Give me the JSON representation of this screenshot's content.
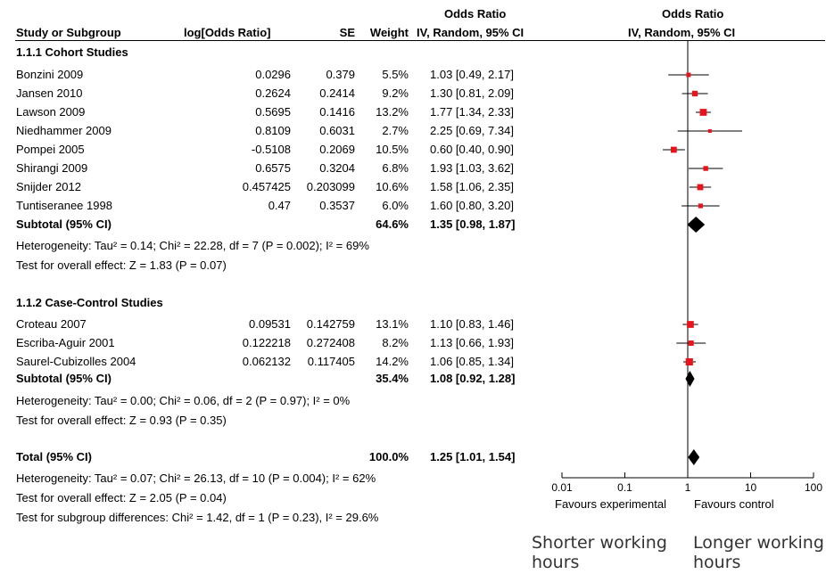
{
  "header": {
    "or_top": "Odds Ratio",
    "study": "Study or Subgroup",
    "logor": "log[Odds Ratio]",
    "se": "SE",
    "weight": "Weight",
    "or_method": "IV, Random, 95% CI",
    "plot_top": "Odds Ratio",
    "plot_method": "IV, Random, 95% CI"
  },
  "groups": [
    {
      "title": "1.1.1 Cohort Studies",
      "studies": [
        {
          "name": "Bonzini 2009",
          "logor": "0.0296",
          "se": "0.379",
          "weight": "5.5%",
          "or_ci": "1.03 [0.49, 2.17]"
        },
        {
          "name": "Jansen 2010",
          "logor": "0.2624",
          "se": "0.2414",
          "weight": "9.2%",
          "or_ci": "1.30 [0.81, 2.09]"
        },
        {
          "name": "Lawson 2009",
          "logor": "0.5695",
          "se": "0.1416",
          "weight": "13.2%",
          "or_ci": "1.77 [1.34, 2.33]"
        },
        {
          "name": "Niedhammer 2009",
          "logor": "0.8109",
          "se": "0.6031",
          "weight": "2.7%",
          "or_ci": "2.25 [0.69, 7.34]"
        },
        {
          "name": "Pompei 2005",
          "logor": "-0.5108",
          "se": "0.2069",
          "weight": "10.5%",
          "or_ci": "0.60 [0.40, 0.90]"
        },
        {
          "name": "Shirangi 2009",
          "logor": "0.6575",
          "se": "0.3204",
          "weight": "6.8%",
          "or_ci": "1.93 [1.03, 3.62]"
        },
        {
          "name": "Snijder 2012",
          "logor": "0.457425",
          "se": "0.203099",
          "weight": "10.6%",
          "or_ci": "1.58 [1.06, 2.35]"
        },
        {
          "name": "Tuntiseranee 1998",
          "logor": "0.47",
          "se": "0.3537",
          "weight": "6.0%",
          "or_ci": "1.60 [0.80, 3.20]"
        }
      ],
      "subtotal": {
        "label": "Subtotal (95% CI)",
        "weight": "64.6%",
        "or_ci": "1.35 [0.98, 1.87]"
      },
      "heterogeneity": "Heterogeneity: Tau² = 0.14; Chi² = 22.28, df = 7 (P = 0.002); I² = 69%",
      "overall": "Test for overall effect: Z = 1.83 (P = 0.07)"
    },
    {
      "title": "1.1.2 Case-Control Studies",
      "studies": [
        {
          "name": "Croteau 2007",
          "logor": "0.09531",
          "se": "0.142759",
          "weight": "13.1%",
          "or_ci": "1.10 [0.83, 1.46]"
        },
        {
          "name": "Escriba-Aguir 2001",
          "logor": "0.122218",
          "se": "0.272408",
          "weight": "8.2%",
          "or_ci": "1.13 [0.66, 1.93]"
        },
        {
          "name": "Saurel-Cubizolles 2004",
          "logor": "0.062132",
          "se": "0.117405",
          "weight": "14.2%",
          "or_ci": "1.06 [0.85, 1.34]"
        }
      ],
      "subtotal": {
        "label": "Subtotal (95% CI)",
        "weight": "35.4%",
        "or_ci": "1.08 [0.92, 1.28]"
      },
      "heterogeneity": "Heterogeneity: Tau² = 0.00; Chi² = 0.06, df = 2 (P = 0.97); I² = 0%",
      "overall": "Test for overall effect: Z = 0.93 (P = 0.35)"
    }
  ],
  "total": {
    "label": "Total (95% CI)",
    "weight": "100.0%",
    "or_ci": "1.25 [1.01, 1.54]",
    "heterogeneity": "Heterogeneity: Tau² = 0.07; Chi² = 26.13, df = 10 (P = 0.004); I² = 62%",
    "overall": "Test for overall effect: Z = 2.05 (P = 0.04)",
    "subgroup_diff": "Test for subgroup differences: Chi² = 1.42, df = 1 (P = 0.23), I² = 29.6%"
  },
  "axis": {
    "favours_left": "Favours experimental",
    "favours_right": "Favours control"
  },
  "annotations": {
    "left": "Shorter working hours",
    "right": "Longer working hours"
  },
  "chart_data": {
    "type": "forest",
    "x_scale": "log",
    "xlim": [
      0.01,
      100
    ],
    "x_ticks": [
      0.01,
      0.1,
      1,
      10,
      100
    ],
    "x_tick_labels": [
      "0.01",
      "0.1",
      "1",
      "10",
      "100"
    ],
    "reference_line": 1,
    "marker_color": "#e8141b",
    "studies": [
      {
        "name": "Bonzini 2009",
        "or": 1.03,
        "lo": 0.49,
        "hi": 2.17,
        "weight": 5.5
      },
      {
        "name": "Jansen 2010",
        "or": 1.3,
        "lo": 0.81,
        "hi": 2.09,
        "weight": 9.2
      },
      {
        "name": "Lawson 2009",
        "or": 1.77,
        "lo": 1.34,
        "hi": 2.33,
        "weight": 13.2
      },
      {
        "name": "Niedhammer 2009",
        "or": 2.25,
        "lo": 0.69,
        "hi": 7.34,
        "weight": 2.7
      },
      {
        "name": "Pompei 2005",
        "or": 0.6,
        "lo": 0.4,
        "hi": 0.9,
        "weight": 10.5
      },
      {
        "name": "Shirangi 2009",
        "or": 1.93,
        "lo": 1.03,
        "hi": 3.62,
        "weight": 6.8
      },
      {
        "name": "Snijder 2012",
        "or": 1.58,
        "lo": 1.06,
        "hi": 2.35,
        "weight": 10.6
      },
      {
        "name": "Tuntiseranee 1998",
        "or": 1.6,
        "lo": 0.8,
        "hi": 3.2,
        "weight": 6.0
      },
      {
        "name": "Croteau 2007",
        "or": 1.1,
        "lo": 0.83,
        "hi": 1.46,
        "weight": 13.1
      },
      {
        "name": "Escriba-Aguir 2001",
        "or": 1.13,
        "lo": 0.66,
        "hi": 1.93,
        "weight": 8.2
      },
      {
        "name": "Saurel-Cubizolles 2004",
        "or": 1.06,
        "lo": 0.85,
        "hi": 1.34,
        "weight": 14.2
      }
    ],
    "pooled": [
      {
        "name": "Subtotal 1.1.1",
        "or": 1.35,
        "lo": 0.98,
        "hi": 1.87
      },
      {
        "name": "Subtotal 1.1.2",
        "or": 1.08,
        "lo": 0.92,
        "hi": 1.28
      },
      {
        "name": "Total",
        "or": 1.25,
        "lo": 1.01,
        "hi": 1.54
      }
    ]
  }
}
